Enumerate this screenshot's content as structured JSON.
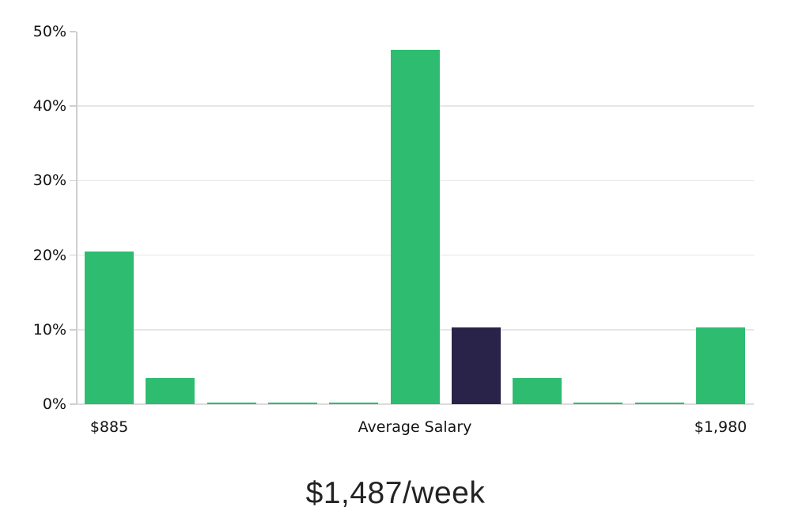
{
  "chart_data": {
    "type": "bar",
    "title": "$1,487/week",
    "ymax": 50,
    "y_ticks": [
      {
        "value": 0,
        "label": "0%"
      },
      {
        "value": 10,
        "label": "10%"
      },
      {
        "value": 20,
        "label": "20%"
      },
      {
        "value": 30,
        "label": "30%"
      },
      {
        "value": 40,
        "label": "40%"
      },
      {
        "value": 50,
        "label": "50%"
      }
    ],
    "values": [
      20.5,
      3.5,
      0.2,
      0.2,
      0.2,
      47.6,
      10.3,
      3.5,
      0.2,
      0.2,
      10.3
    ],
    "highlight_index": 6,
    "x_ticks": [
      {
        "bar": 0,
        "label": "$885"
      },
      {
        "bar": 5,
        "label": "Average Salary"
      },
      {
        "bar": 10,
        "label": "$1,980"
      }
    ],
    "colors": {
      "bar": "#2ebd70",
      "highlight_bar": "#292349",
      "gridline": "#e6e6e6",
      "baseline": "#dcdcdc",
      "axis": "#cfcfcf",
      "label_text": "#141414",
      "title_text": "#232323"
    },
    "grid": "horizontal",
    "legend": "none"
  }
}
